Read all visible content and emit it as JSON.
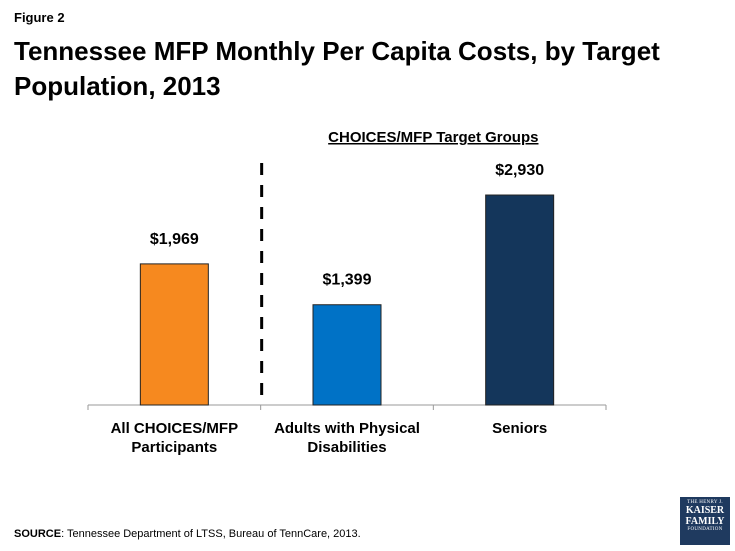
{
  "figure_label": "Figure 2",
  "source": {
    "prefix": "SOURCE",
    "text": ": Tennessee Department of LTSS, Bureau of TennCare, 2013."
  },
  "logo": {
    "line1": "THE HENRY J.",
    "line2": "KAISER",
    "line3": "FAMILY",
    "line4": "FOUNDATION"
  },
  "chart_data": {
    "type": "bar",
    "title": "Tennessee MFP Monthly Per Capita Costs, by Target Population, 2013",
    "group_label": "CHOICES/MFP Target Groups",
    "categories": [
      [
        "All CHOICES/MFP",
        "Participants"
      ],
      [
        "Adults with Physical",
        "Disabilities"
      ],
      [
        "Seniors"
      ]
    ],
    "values": [
      1969,
      1399,
      2930
    ],
    "value_labels": [
      "$1,969",
      "$1,399",
      "$2,930"
    ],
    "colors": [
      "#F6891F",
      "#0072C6",
      "#14365B"
    ],
    "ylim": [
      0,
      3000
    ],
    "xlabel": "",
    "ylabel": "",
    "grid": false,
    "divider_after_category": 0
  }
}
